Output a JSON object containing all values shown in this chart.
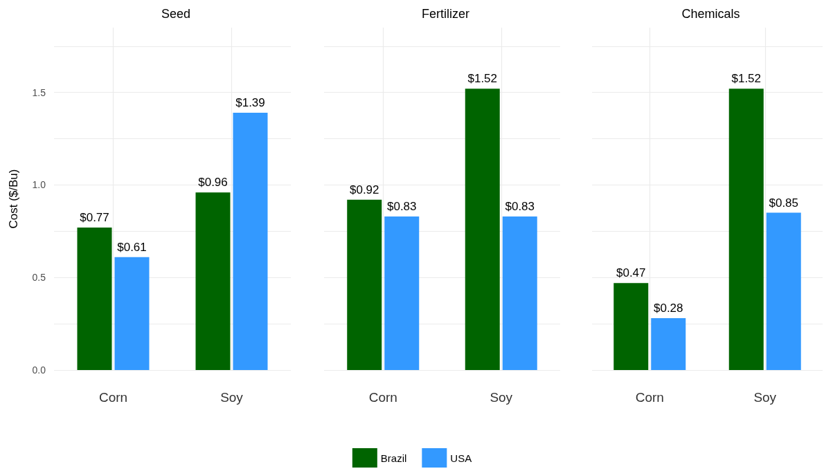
{
  "chart_data": [
    {
      "type": "bar",
      "title": "Seed",
      "ylabel": "Cost ($/Bu)",
      "categories": [
        "Corn",
        "Soy"
      ],
      "series": [
        {
          "name": "Brazil",
          "color": "#006400",
          "values": [
            0.77,
            0.96
          ],
          "value_labels": [
            "$0.77",
            "$0.96"
          ]
        },
        {
          "name": "USA",
          "color": "#3399ff",
          "values": [
            0.61,
            1.39
          ],
          "value_labels": [
            "$0.61",
            "$1.39"
          ]
        }
      ],
      "ylim": [
        0,
        1.85
      ],
      "yticks": [
        {
          "value": 0,
          "label": "0.0"
        },
        {
          "value": 0.25,
          "label": null
        },
        {
          "value": 0.5,
          "label": "0.5"
        },
        {
          "value": 0.75,
          "label": null
        },
        {
          "value": 1,
          "label": "1.0"
        },
        {
          "value": 1.25,
          "label": null
        },
        {
          "value": 1.5,
          "label": "1.5"
        },
        {
          "value": 1.75,
          "label": null
        }
      ],
      "grid": true,
      "legend": "bottom"
    },
    {
      "type": "bar",
      "title": "Fertilizer",
      "categories": [
        "Corn",
        "Soy"
      ],
      "series": [
        {
          "color": "#006400",
          "values": [
            0.92,
            1.52
          ],
          "value_labels": [
            "$0.92",
            "$1.52"
          ]
        },
        {
          "color": "#3399ff",
          "values": [
            0.83,
            0.83
          ],
          "value_labels": [
            "$0.83",
            "$0.83"
          ]
        }
      ],
      "ylim": [
        0,
        1.85
      ],
      "yticks": [
        0,
        0.25,
        0.5,
        0.75,
        1,
        1.25,
        1.5,
        1.75
      ],
      "grid": true,
      "tick_labels": "x"
    },
    {
      "type": "bar",
      "title": "Chemicals",
      "categories": [
        "Corn",
        "Soy"
      ],
      "series": [
        {
          "color": "#006400",
          "values": [
            0.47,
            1.52
          ],
          "value_labels": [
            "$0.47",
            "$1.52"
          ]
        },
        {
          "color": "#3399ff",
          "values": [
            0.28,
            0.85
          ],
          "value_labels": [
            "$0.28",
            "$0.85"
          ]
        }
      ],
      "ylim": [
        0,
        1.85
      ],
      "yticks": [
        0,
        0.25,
        0.5,
        0.75,
        1,
        1.25,
        1.5,
        1.75
      ],
      "grid": true,
      "tick_labels": "x"
    }
  ]
}
